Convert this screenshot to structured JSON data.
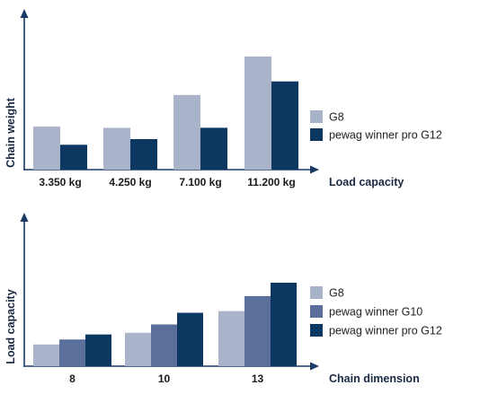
{
  "chart_data": [
    {
      "type": "bar",
      "title": "",
      "xlabel": "Load capacity",
      "ylabel": "Chain weight",
      "categories": [
        "3.350 kg",
        "4.250 kg",
        "7.100 kg",
        "11.200 kg"
      ],
      "ylim": [
        0,
        100
      ],
      "grid": false,
      "legend": "right",
      "series": [
        {
          "name": "G8",
          "color": "#a9b3c9",
          "values": [
            38,
            37,
            66,
            100
          ]
        },
        {
          "name": "pewag winner pro G12",
          "color": "#0c3761",
          "values": [
            22,
            27,
            37,
            78
          ]
        }
      ]
    },
    {
      "type": "bar",
      "title": "",
      "xlabel": "Chain dimension",
      "ylabel": "Load capacity",
      "categories": [
        "8",
        "10",
        "13"
      ],
      "ylim": [
        0,
        100
      ],
      "grid": false,
      "legend": "right",
      "series": [
        {
          "name": "G8",
          "color": "#a9b3c9",
          "values": [
            26,
            40,
            66
          ]
        },
        {
          "name": "pewag winner G10",
          "color": "#5a6f99",
          "values": [
            32,
            50,
            84
          ]
        },
        {
          "name": "pewag winner pro G12",
          "color": "#0c3761",
          "values": [
            38,
            64,
            100
          ]
        }
      ]
    }
  ]
}
